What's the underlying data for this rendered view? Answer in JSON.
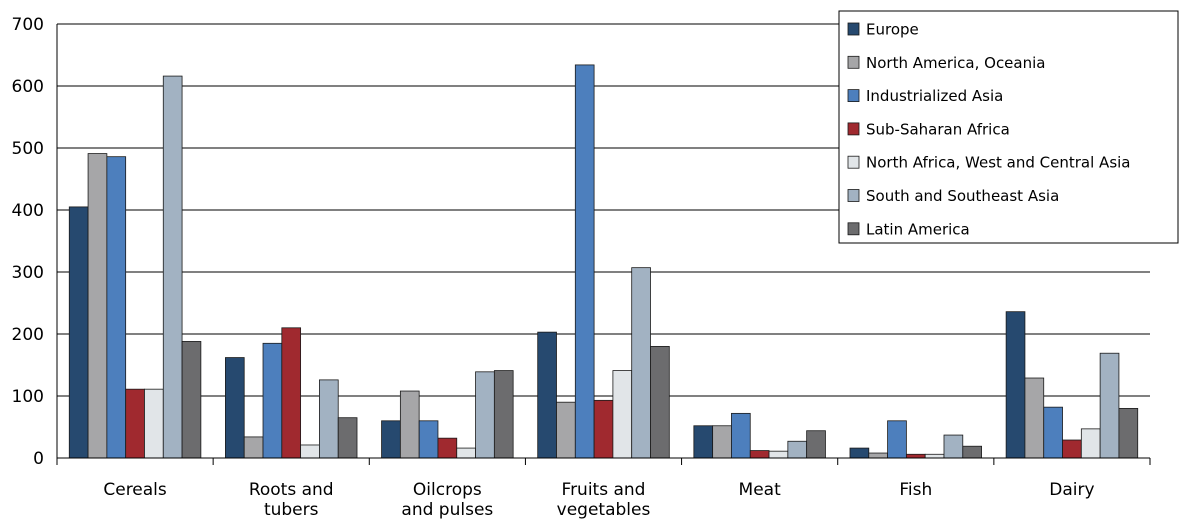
{
  "chart_data": {
    "type": "bar",
    "title": "",
    "xlabel": "",
    "ylabel": "",
    "ylim": [
      0,
      700
    ],
    "yticks": [
      "0",
      "100",
      "200",
      "300",
      "400",
      "500",
      "600",
      "700"
    ],
    "grid": true,
    "legend_position": "top-right",
    "categories": [
      [
        "Cereals"
      ],
      [
        "Roots and",
        "tubers"
      ],
      [
        "Oilcrops",
        "and pulses"
      ],
      [
        "Fruits and",
        "vegetables"
      ],
      [
        "Meat"
      ],
      [
        "Fish"
      ],
      [
        "Dairy"
      ]
    ],
    "series": [
      {
        "name": "Europe",
        "color": "#26496f",
        "values": [
          405,
          162,
          60,
          203,
          52,
          16,
          236
        ]
      },
      {
        "name": "North America, Oceania",
        "color": "#a6a6a8",
        "values": [
          491,
          34,
          108,
          90,
          52,
          8,
          129
        ]
      },
      {
        "name": "Industrialized Asia",
        "color": "#4d7fbd",
        "values": [
          486,
          185,
          60,
          634,
          72,
          60,
          82
        ]
      },
      {
        "name": "Sub-Saharan Africa",
        "color": "#a0292f",
        "values": [
          111,
          210,
          32,
          93,
          12,
          6,
          29
        ]
      },
      {
        "name": "North Africa, West and Central Asia",
        "color": "#e1e5e8",
        "values": [
          111,
          21,
          16,
          141,
          11,
          6,
          47
        ]
      },
      {
        "name": "South and Southeast Asia",
        "color": "#a2b2c2",
        "values": [
          616,
          126,
          139,
          307,
          27,
          37,
          169
        ]
      },
      {
        "name": "Latin America",
        "color": "#6c6c6e",
        "values": [
          188,
          65,
          141,
          180,
          44,
          19,
          80
        ]
      }
    ]
  }
}
